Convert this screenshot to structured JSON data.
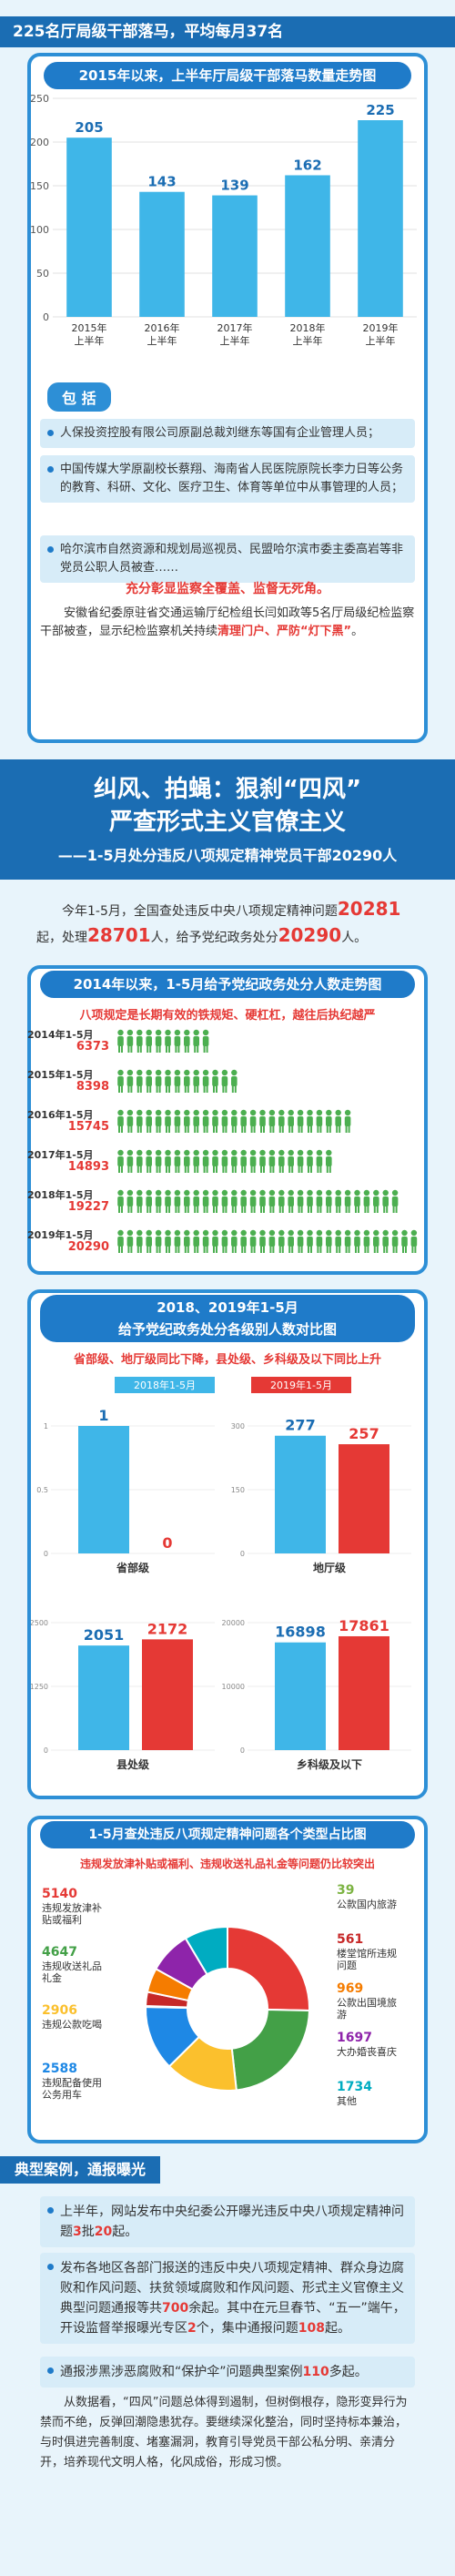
{
  "section1": {
    "header": "225名厅局级干部落马，平均每月37名",
    "chart_title": "2015年以来，上半年厅局级干部落马数量走势图",
    "tag": "包  括",
    "bullets": [
      "人保投资控股有限公司原副总裁刘继东等国有企业管理人员；",
      "中国传媒大学原副校长蔡翔、海南省人民医院原院长李力日等公务的教育、科研、文化、医疗卫生、体育等单位中从事管理的人员；",
      "哈尔滨市自然资源和规划局巡视员、民盟哈尔滨市委主委高岩等非党员公职人员被查……"
    ],
    "emphasis": "充分彰显监察全覆盖、监督无死角。",
    "text_before": "安徽省纪委原驻省交通运输厅纪检组长闫如政等5名厅局级纪检监察干部被查，显示纪检监察机关持续",
    "text_red": "清理门户、严防“灯下黑”",
    "text_after": "。"
  },
  "section2": {
    "title_line1": "纠风、拍蝇：狠刹“四风”",
    "title_line2": "严查形式主义官僚主义",
    "title_line3": "——1-5月处分违反八项规定精神党员干部20290人",
    "p_a": "今年1-5月，全国查处违反中央八项规定精神问题",
    "p_b": "20281",
    "p_c": "起，处理",
    "p_d": "28701",
    "p_e": "人，给予党纪政务处分",
    "p_f": "20290",
    "p_g": "人。",
    "chart2_title": "2014年以来，1-5月给予党纪政务处分人数走势图",
    "chart2_sub": "八项规定是长期有效的铁规矩、硬杠杠，越往后执纪越严",
    "chart3_title_l1": "2018、2019年1-5月",
    "chart3_title_l2": "给予党纪政务处分各级别人数对比图",
    "chart3_sub": "省部级、地厅级同比下降，县处级、乡科级及以下同比上升",
    "chart4_title": "1-5月查处违反八项规定精神问题各个类型占比图",
    "chart4_sub": "违规发放津补贴或福利、违规收送礼品礼金等问题仍比较突出"
  },
  "section3": {
    "header": "典型案例，通报曝光",
    "b1_a": "上半年，网站发布中央纪委公开曝光违反中央八项规定精神问题",
    "b1_b": "3",
    "b1_c": "批",
    "b1_d": "20",
    "b1_e": "起。",
    "b2_a": "发布各地区各部门报送的违反中央八项规定精神、群众身边腐败和作风问题、扶贫领域腐败和作风问题、形式主义官僚主义典型问题通报等共",
    "b2_b": "700",
    "b2_c": "余起。其中在元旦春节、“五一”端午，开设监督举报曝光专区",
    "b2_d": "2",
    "b2_e": "个，集中通报问题",
    "b2_f": "108",
    "b2_g": "起。",
    "b3_a": "通报涉黑涉恶腐败和“保护伞”问题典型案例",
    "b3_b": "110",
    "b3_c": "多起。",
    "final": "从数据看，“四风”问题总体得到遏制，但树倒根存，隐形变异行为禁而不绝，反弹回潮隐患犹存。要继续深化整治，同时坚持标本兼治，与时俱进完善制度、堵塞漏洞，教育引导党员干部公私分明、亲清分开，培养现代文明人格，化风成俗，形成习惯。"
  },
  "chart_data": [
    {
      "type": "bar",
      "title": "2015年以来，上半年厅局级干部落马数量走势图",
      "categories": [
        "2015年\n上半年",
        "2016年\n上半年",
        "2017年\n上半年",
        "2018年\n上半年",
        "2019年\n上半年"
      ],
      "values": [
        205,
        143,
        139,
        162,
        225
      ],
      "ylim": [
        0,
        250
      ],
      "yticks": [
        0,
        50,
        100,
        150,
        200,
        250
      ],
      "color": "#3fb6e8"
    },
    {
      "type": "bar",
      "title": "2014年以来，1-5月给予党纪政务处分人数走势图",
      "categories": [
        "2014年1-5月",
        "2015年1-5月",
        "2016年1-5月",
        "2017年1-5月",
        "2018年1-5月",
        "2019年1-5月"
      ],
      "values": [
        6373,
        8398,
        15745,
        14893,
        19227,
        20290
      ],
      "color": "#4caf50"
    },
    {
      "type": "bar",
      "title": "给予党纪政务处分各级别人数对比图",
      "series": [
        {
          "name": "2018年1-5月",
          "color": "#3fb6e8"
        },
        {
          "name": "2019年1-5月",
          "color": "#e53935"
        }
      ],
      "panels": [
        {
          "label": "省部级",
          "values": [
            1,
            0
          ],
          "ylim": [
            0,
            1
          ]
        },
        {
          "label": "地厅级",
          "values": [
            277,
            257
          ],
          "ylim": [
            0,
            300
          ]
        },
        {
          "label": "县处级",
          "values": [
            2051,
            2172
          ],
          "ylim": [
            0,
            2500
          ]
        },
        {
          "label": "乡科级及以下",
          "values": [
            16898,
            17861
          ],
          "ylim": [
            0,
            20000
          ]
        }
      ],
      "grid": true
    },
    {
      "type": "pie",
      "title": "1-5月查处违反八项规定精神问题各个类型占比图",
      "slices": [
        {
          "label": "违规发放津补贴或福利",
          "value": 5140,
          "color": "#e53935"
        },
        {
          "label": "违规收送礼品礼金",
          "value": 4647,
          "color": "#43a047"
        },
        {
          "label": "违规公款吃喝",
          "value": 2906,
          "color": "#fbc02d"
        },
        {
          "label": "违规配备使用公务用车",
          "value": 2588,
          "color": "#1e88e5"
        },
        {
          "label": "公款国内旅游",
          "value": 39,
          "color": "#7cb342"
        },
        {
          "label": "楼堂馆所违规问题",
          "value": 561,
          "color": "#c62828"
        },
        {
          "label": "公款出国境旅游",
          "value": 969,
          "color": "#f57c00"
        },
        {
          "label": "大办婚丧喜庆",
          "value": 1697,
          "color": "#8e24aa"
        },
        {
          "label": "其他",
          "value": 1734,
          "color": "#00acc1"
        }
      ]
    }
  ]
}
